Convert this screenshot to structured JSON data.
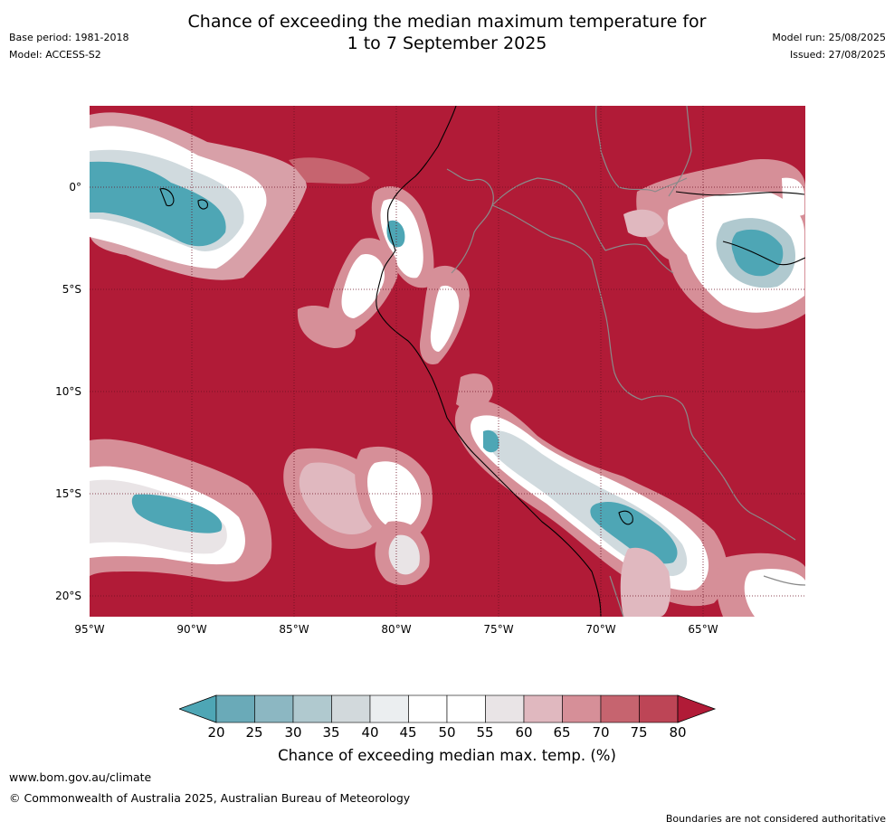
{
  "header": {
    "title_line1": "Chance of exceeding the median maximum temperature for",
    "title_line2": "1 to 7 September 2025",
    "base_period": "Base period: 1981-2018",
    "model": "Model: ACCESS-S2",
    "model_run": "Model run: 25/08/2025",
    "issued": "Issued: 27/08/2025"
  },
  "map": {
    "lon_range": [
      -95,
      -60
    ],
    "lat_range": [
      -21,
      4
    ],
    "lat_ticks": [
      "0°",
      "5°S",
      "10°S",
      "15°S",
      "20°S"
    ],
    "lon_ticks": [
      "95°W",
      "90°W",
      "85°W",
      "80°W",
      "75°W",
      "70°W",
      "65°W"
    ],
    "background_class_color": "#b11b37",
    "regions": [
      {
        "name": "galapagos-cool-anomaly",
        "lon": -91,
        "lat": -1.5
      },
      {
        "name": "amazon-cool-anomaly",
        "lon": -62,
        "lat": -3
      },
      {
        "name": "altiplano-cool-anomaly",
        "lon": -69,
        "lat": -16.5
      },
      {
        "name": "offshore-cool-anomaly",
        "lon": -91,
        "lat": -16
      },
      {
        "name": "coastal-peru-cool-anomaly",
        "lon": -75,
        "lat": -12.5
      }
    ]
  },
  "colorbar": {
    "ticks": [
      "20",
      "25",
      "30",
      "35",
      "40",
      "45",
      "50",
      "55",
      "60",
      "65",
      "70",
      "75",
      "80"
    ],
    "colors": [
      "#4ea6b5",
      "#6aaab8",
      "#8cb7c2",
      "#b0c9cf",
      "#d2d9dc",
      "#ebeef0",
      "#ffffff",
      "#ffffff",
      "#e9e4e6",
      "#e0b8bf",
      "#d68f98",
      "#c6646f",
      "#bd4556",
      "#b11b37"
    ],
    "label": "Chance of exceeding median max. temp. (%)"
  },
  "footer": {
    "url": "www.bom.gov.au/climate",
    "copyright": "© Commonwealth of Australia 2025, Australian Bureau of Meteorology",
    "note": "Boundaries are not considered authoritative"
  }
}
